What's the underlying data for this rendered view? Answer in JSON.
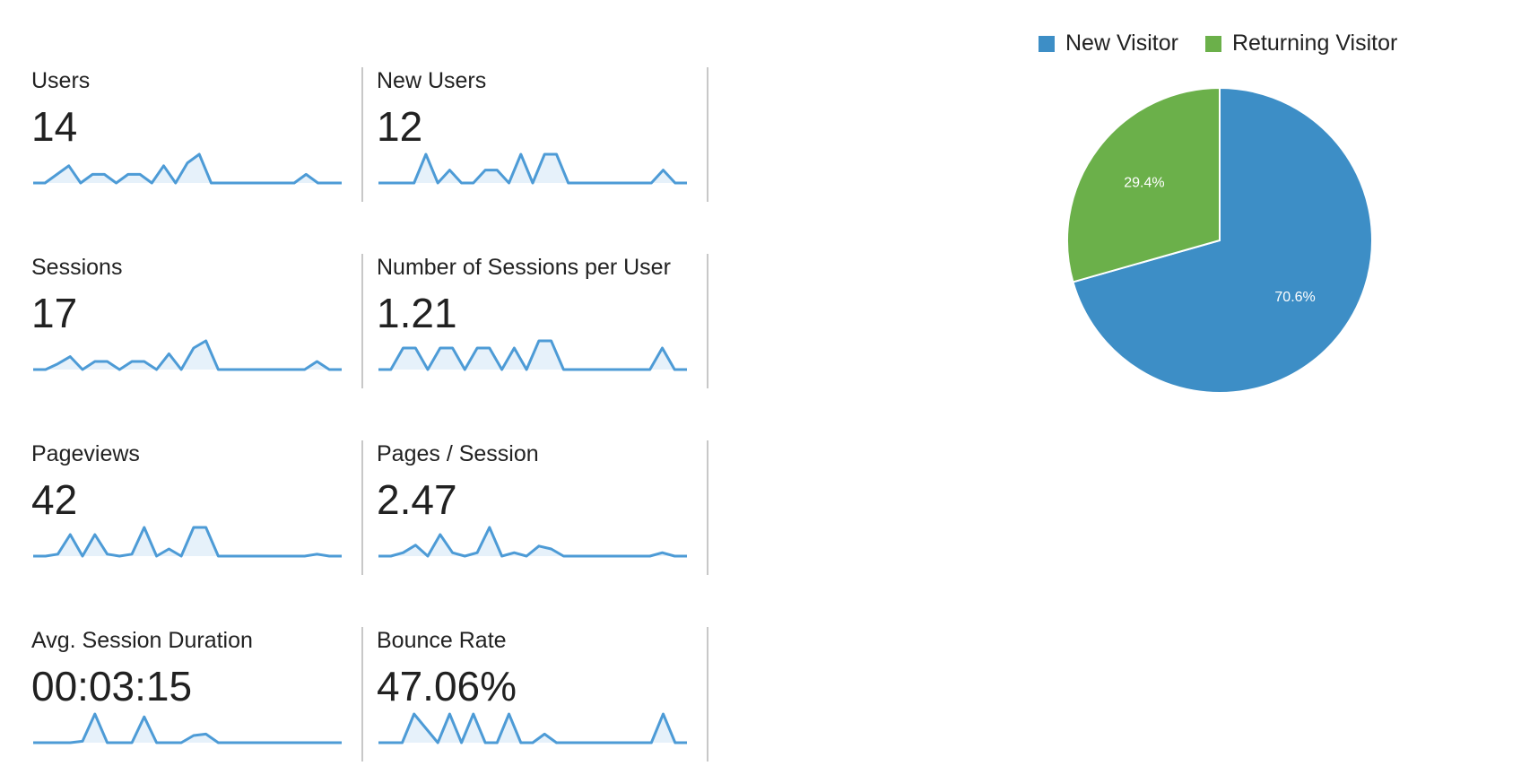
{
  "metrics": [
    {
      "label": "Users",
      "value": "14",
      "trend": [
        0,
        0,
        0.3,
        0.6,
        0,
        0.3,
        0.3,
        0,
        0.3,
        0.3,
        0,
        0.6,
        0,
        0.7,
        1,
        0,
        0,
        0,
        0,
        0,
        0,
        0,
        0,
        0.3,
        0,
        0,
        0
      ]
    },
    {
      "label": "New Users",
      "value": "12",
      "trend": [
        0,
        0,
        0,
        0,
        1,
        0,
        0.45,
        0,
        0,
        0.45,
        0.45,
        0,
        1,
        0,
        1,
        1,
        0,
        0,
        0,
        0,
        0,
        0,
        0,
        0,
        0.45,
        0,
        0
      ]
    },
    {
      "label": "Sessions",
      "value": "17",
      "trend": [
        0,
        0,
        0.2,
        0.45,
        0,
        0.28,
        0.28,
        0,
        0.28,
        0.28,
        0,
        0.55,
        0,
        0.75,
        1,
        0,
        0,
        0,
        0,
        0,
        0,
        0,
        0,
        0.28,
        0,
        0
      ]
    },
    {
      "label": "Number of Sessions per User",
      "value": "1.21",
      "trend": [
        0,
        0,
        0.75,
        0.75,
        0,
        0.75,
        0.75,
        0,
        0.75,
        0.75,
        0,
        0.75,
        0,
        1,
        1,
        0,
        0,
        0,
        0,
        0,
        0,
        0,
        0,
        0.75,
        0,
        0
      ]
    },
    {
      "label": "Pageviews",
      "value": "42",
      "trend": [
        0,
        0,
        0.07,
        0.75,
        0,
        0.75,
        0.07,
        0,
        0.07,
        1,
        0,
        0.25,
        0,
        1,
        1,
        0,
        0,
        0,
        0,
        0,
        0,
        0,
        0,
        0.07,
        0,
        0
      ]
    },
    {
      "label": "Pages / Session",
      "value": "2.47",
      "trend": [
        0,
        0,
        0.12,
        0.38,
        0,
        0.75,
        0.12,
        0,
        0.12,
        1,
        0,
        0.12,
        0,
        0.35,
        0.25,
        0,
        0,
        0,
        0,
        0,
        0,
        0,
        0,
        0.12,
        0,
        0
      ]
    },
    {
      "label": "Avg. Session Duration",
      "value": "00:03:15",
      "trend": [
        0,
        0,
        0,
        0,
        0.05,
        1,
        0,
        0,
        0,
        0.9,
        0,
        0,
        0,
        0.25,
        0.3,
        0,
        0,
        0,
        0,
        0,
        0,
        0,
        0,
        0,
        0,
        0
      ]
    },
    {
      "label": "Bounce Rate",
      "value": "47.06%",
      "trend": [
        0,
        0,
        0,
        1,
        0.5,
        0,
        1,
        0,
        1,
        0,
        0,
        1,
        0,
        0,
        0.3,
        0,
        0,
        0,
        0,
        0,
        0,
        0,
        0,
        0,
        1,
        0,
        0
      ]
    }
  ],
  "colors": {
    "sparkline_stroke": "#4d9bd6",
    "sparkline_fill": "#e6f1fa",
    "new_visitor": "#3d8ec6",
    "returning_visitor": "#6bb04a"
  },
  "chart_data": {
    "type": "pie",
    "legend_position": "top",
    "series": [
      {
        "name": "New Visitor",
        "value": 70.6,
        "label": "70.6%"
      },
      {
        "name": "Returning Visitor",
        "value": 29.4,
        "label": "29.4%"
      }
    ]
  }
}
